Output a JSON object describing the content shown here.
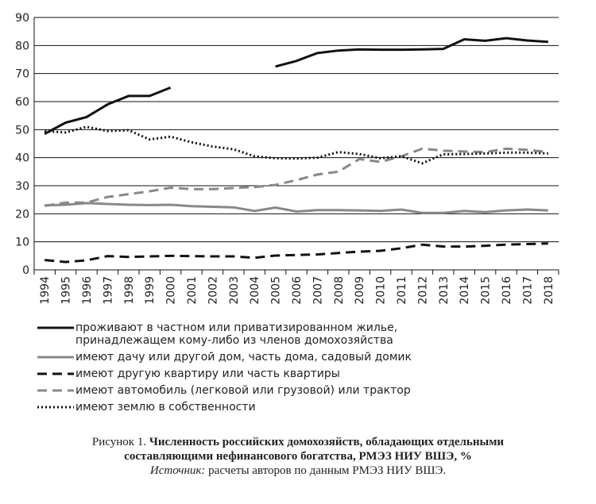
{
  "chart_data": {
    "type": "line",
    "figure_label": "Рисунок 1.",
    "title": "Численность российских домохозяйств, обладающих отдельными составляющими нефинансового богатства, РМЭЗ НИУ ВШЭ, %",
    "source_label": "Источник:",
    "source": "расчеты авторов по данным РМЭЗ НИУ ВШЭ.",
    "categories": [
      "1994",
      "1995",
      "1996",
      "1997",
      "1998",
      "1999",
      "2000",
      "2001",
      "2002",
      "2003",
      "2004",
      "2005",
      "2006",
      "2007",
      "2008",
      "2009",
      "2010",
      "2011",
      "2012",
      "2013",
      "2014",
      "2015",
      "2016",
      "2017",
      "2018"
    ],
    "ylim": [
      0,
      90
    ],
    "yticks": [
      0,
      10,
      20,
      30,
      40,
      50,
      60,
      70,
      80,
      90
    ],
    "grid": true,
    "series": [
      {
        "name": "проживают в частном или приватизированном жилье, принадлежащем кому-либо из членов домохозяйства",
        "color": "#111111",
        "dash": "solid",
        "values": [
          48.5,
          52.5,
          54.5,
          59,
          62,
          62,
          65,
          null,
          null,
          null,
          null,
          72.5,
          74.5,
          77.3,
          78.2,
          78.6,
          78.5,
          78.5,
          78.6,
          78.8,
          82.2,
          81.7,
          82.6,
          81.8,
          81.3
        ]
      },
      {
        "name": "имеют дачу или другой дом, часть дома, садовый домик",
        "color": "#888888",
        "dash": "solid",
        "values": [
          23,
          23.2,
          23.8,
          23.5,
          23.2,
          23.1,
          23.2,
          22.7,
          22.5,
          22.3,
          21,
          22.2,
          20.8,
          21.3,
          21.3,
          21.2,
          21,
          21.5,
          20.3,
          20.3,
          21,
          20.6,
          21.2,
          21.5,
          21.2
        ]
      },
      {
        "name": "имеют другую квартиру или часть квартиры",
        "color": "#111111",
        "dash": "dashed",
        "values": [
          3.5,
          2.8,
          3.4,
          4.9,
          4.6,
          4.8,
          5,
          4.9,
          4.8,
          4.8,
          4.3,
          5.1,
          5.3,
          5.5,
          6,
          6.5,
          6.8,
          7.7,
          9,
          8.3,
          8.3,
          8.6,
          9,
          9.2,
          9.4
        ]
      },
      {
        "name": "имеют автомобиль (легковой или грузовой) или трактор",
        "color": "#888888",
        "dash": "dashed",
        "values": [
          22.8,
          24,
          24,
          26,
          27,
          28,
          29.3,
          28.8,
          28.8,
          29.2,
          29.5,
          30.3,
          32,
          34,
          35,
          39.5,
          38.5,
          40.5,
          43.2,
          42.5,
          42.2,
          42,
          43.2,
          42.8,
          42
        ]
      },
      {
        "name": "имеют землю в собственности",
        "color": "#111111",
        "dash": "dotted",
        "values": [
          49.5,
          49,
          51,
          49.5,
          49.8,
          46.5,
          47.5,
          45.5,
          44,
          43,
          40.5,
          39.8,
          39.7,
          40,
          42,
          41.3,
          39.8,
          40.5,
          38,
          41.2,
          41.3,
          41.5,
          41.8,
          41.8,
          41.5
        ]
      }
    ]
  }
}
